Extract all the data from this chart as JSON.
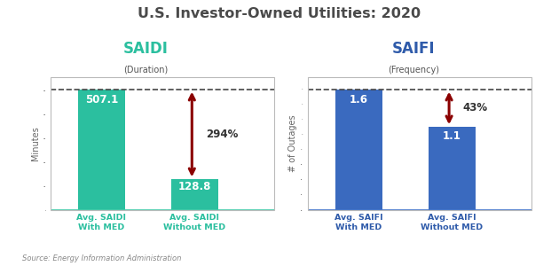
{
  "title": "U.S. Investor-Owned Utilities: 2020",
  "title_color": "#4a4a4a",
  "saidi_label": "SAIDI",
  "saidi_color": "#2bbf9f",
  "saidi_sub": "(Duration)",
  "saifi_label": "SAIFI",
  "saifi_color": "#2f5baa",
  "saifi_sub": "(Frequency)",
  "saidi_values": [
    507.1,
    128.8
  ],
  "saifi_values": [
    1.6,
    1.1
  ],
  "saidi_bar_color": "#2bbf9f",
  "saifi_bar_color": "#3a6abf",
  "saidi_pct": "294%",
  "saifi_pct": "43%",
  "saidi_ylabel": "Minutes",
  "saifi_ylabel": "# of Outages",
  "tick_labels_saidi": [
    "Avg. SAIDI\nWith MED",
    "Avg. SAIDI\nWithout MED"
  ],
  "tick_labels_saifi": [
    "Avg. SAIFI\nWith MED",
    "Avg. SAIFI\nWithout MED"
  ],
  "tick_color_saidi": "#2bbf9f",
  "tick_color_saifi": "#2f5baa",
  "source": "Source: Energy Information Administration",
  "arrow_color": "#8b0000",
  "bg_color": "#ffffff",
  "box_edge_color": "#bbbbbb",
  "dashed_line_color": "#444444",
  "bottom_line_color_saidi": "#44ccaa",
  "bottom_line_color_saifi": "#4477cc"
}
